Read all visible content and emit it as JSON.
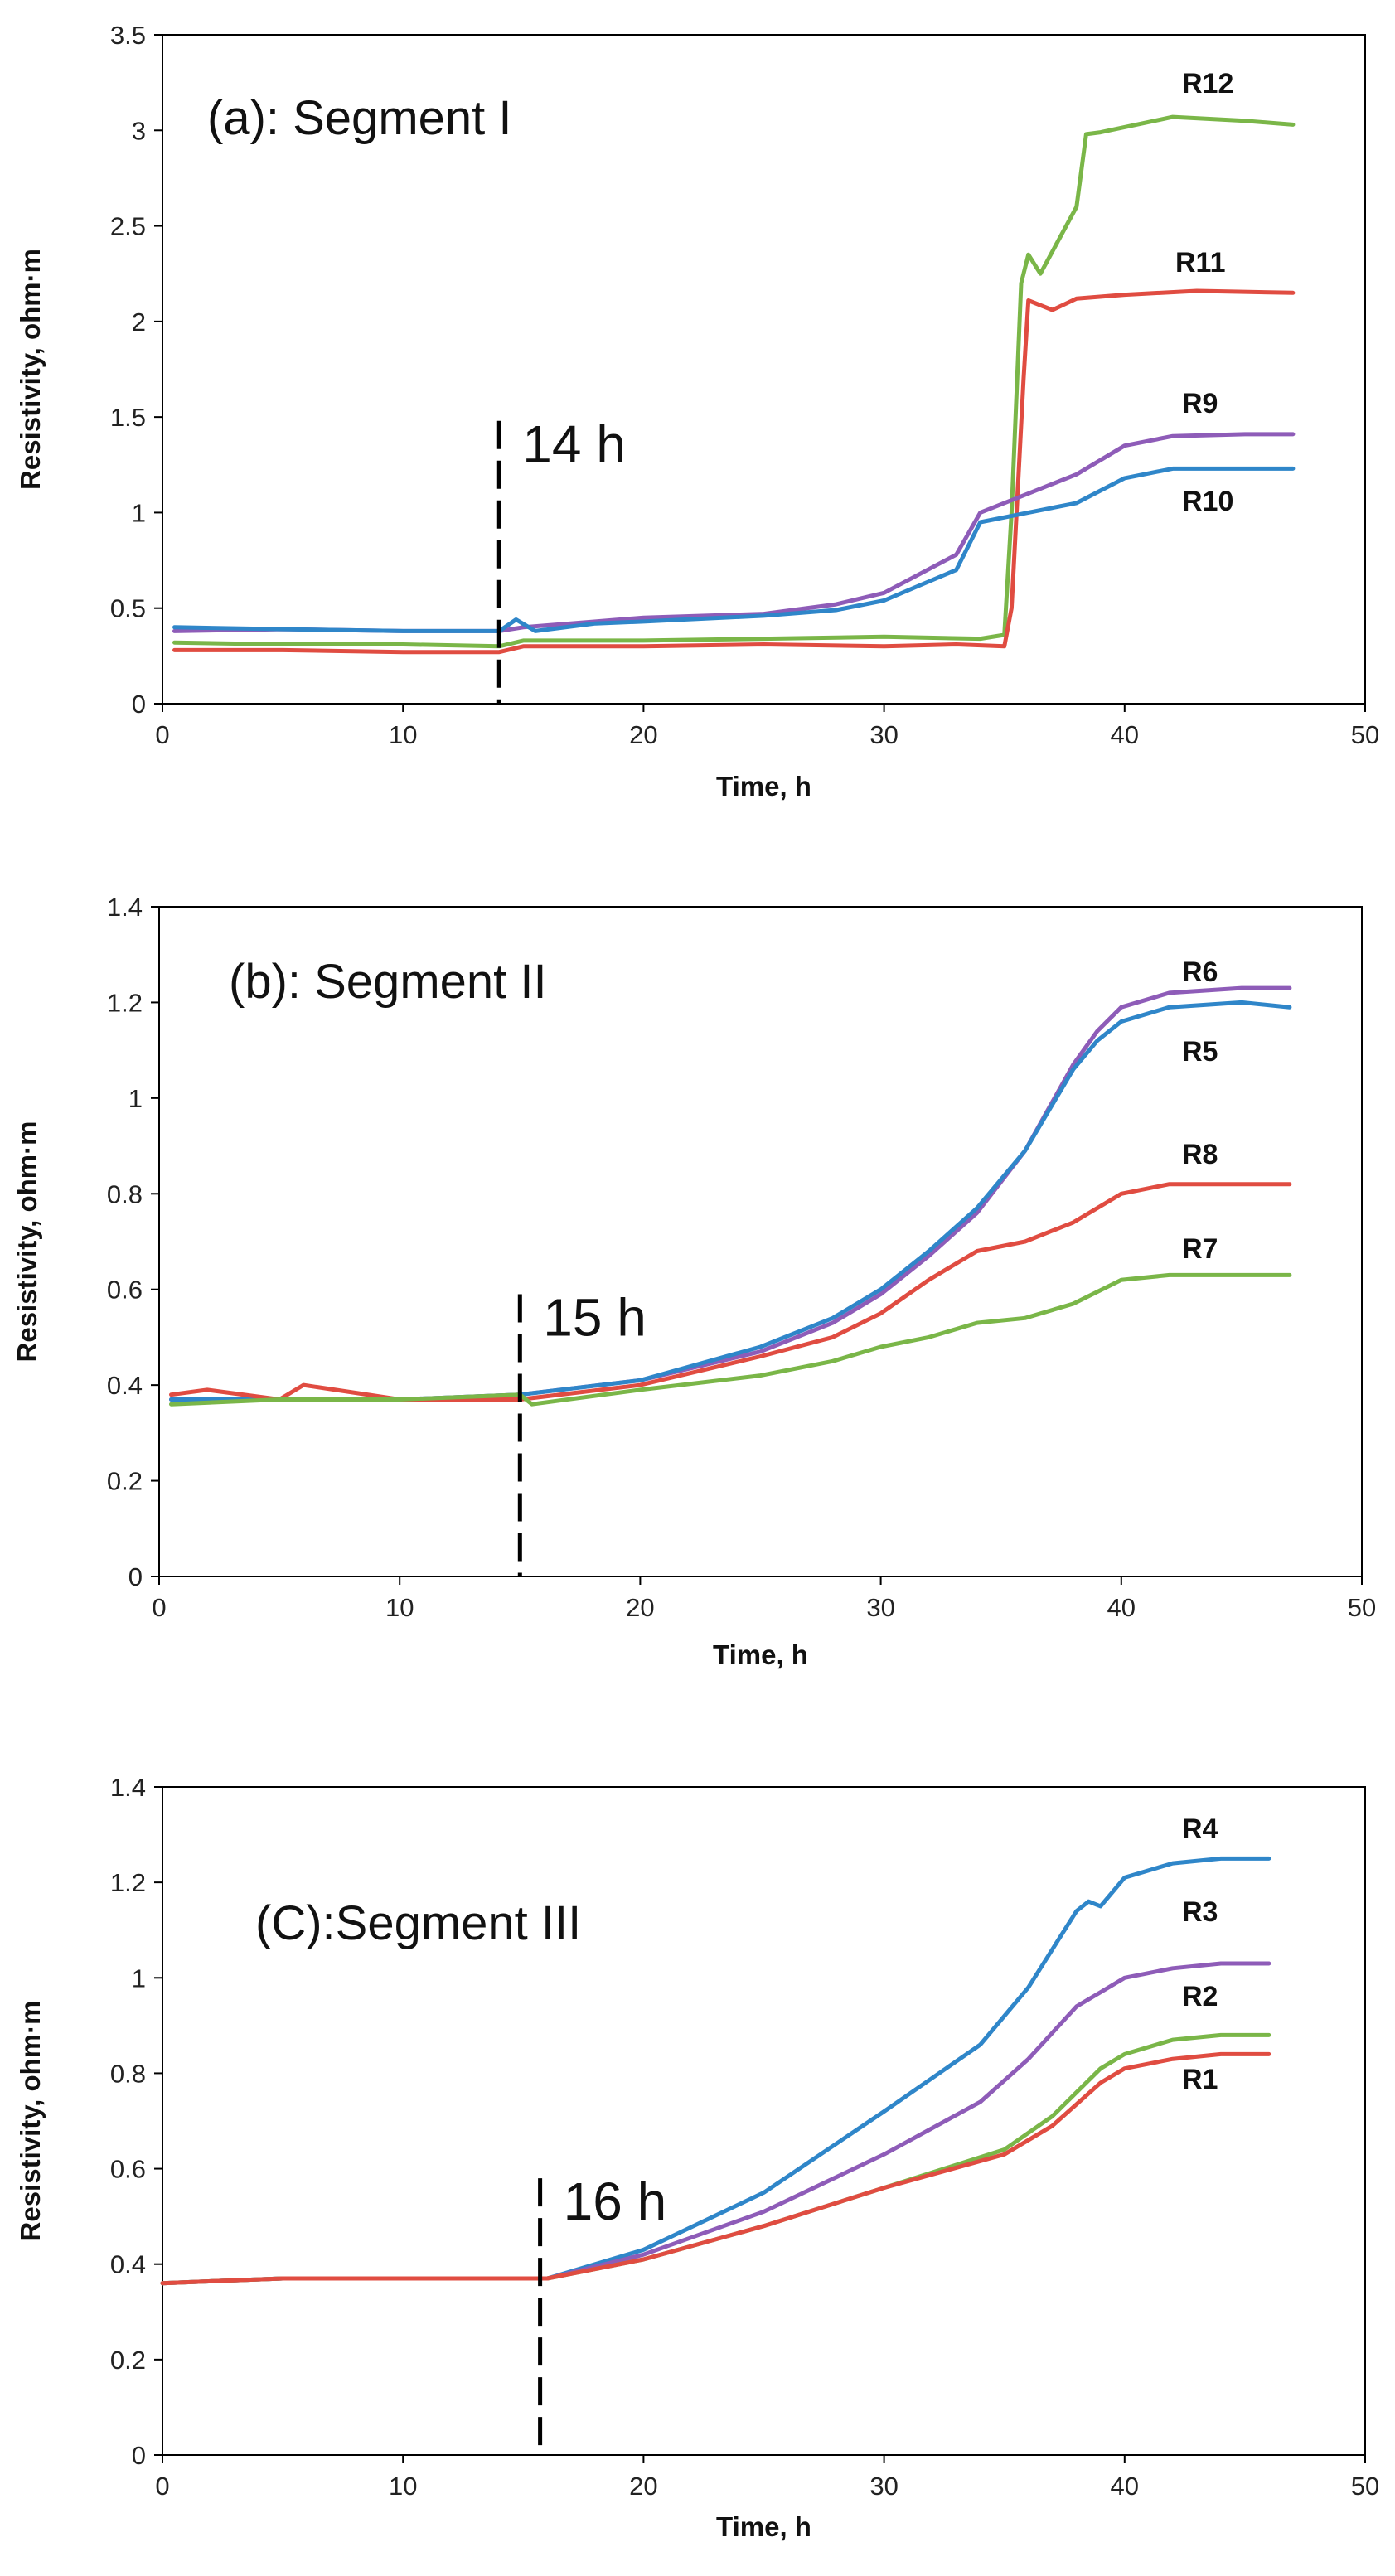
{
  "chart_data": [
    {
      "type": "line",
      "title": "(a): Segment I",
      "xlabel": "Time, h",
      "ylabel": "Resistivity, ohm·m",
      "xlim": [
        0,
        50
      ],
      "ylim": [
        0,
        3.5
      ],
      "xticks": [
        0,
        10,
        20,
        30,
        40,
        50
      ],
      "xtick_labels": [
        "0",
        "10",
        "20",
        "30",
        "40",
        "50"
      ],
      "yticks": [
        0,
        0.5,
        1,
        1.5,
        2,
        2.5,
        3,
        3.5
      ],
      "ytick_labels": [
        "0",
        "0.5",
        "1",
        "1.5",
        "2",
        "2.5",
        "3",
        "3.5"
      ],
      "grid": false,
      "marker": {
        "x": 14,
        "y_top": 1.48,
        "label": "14 h"
      },
      "series": [
        {
          "name": "R12",
          "color": "#7ab648",
          "x": [
            0.5,
            5,
            10,
            14,
            15,
            20,
            25,
            30,
            34,
            35,
            35.3,
            35.7,
            36,
            36.5,
            38,
            38.4,
            39,
            42,
            45,
            47
          ],
          "y": [
            0.32,
            0.31,
            0.31,
            0.3,
            0.33,
            0.33,
            0.34,
            0.35,
            0.34,
            0.36,
            1.0,
            2.2,
            2.35,
            2.25,
            2.6,
            2.98,
            2.99,
            3.07,
            3.05,
            3.03
          ]
        },
        {
          "name": "R11",
          "color": "#e04c41",
          "x": [
            0.5,
            5,
            10,
            14,
            15,
            20,
            25,
            30,
            33,
            35,
            35.3,
            35.8,
            36,
            37,
            38,
            40,
            43,
            47
          ],
          "y": [
            0.28,
            0.28,
            0.27,
            0.27,
            0.3,
            0.3,
            0.31,
            0.3,
            0.31,
            0.3,
            0.5,
            1.7,
            2.11,
            2.06,
            2.12,
            2.14,
            2.16,
            2.15
          ]
        },
        {
          "name": "R9",
          "color": "#8e5cb8",
          "x": [
            0.5,
            5,
            10,
            14,
            15,
            18,
            20,
            25,
            28,
            30,
            33,
            34,
            36,
            38,
            40,
            42,
            45,
            47
          ],
          "y": [
            0.38,
            0.39,
            0.38,
            0.38,
            0.4,
            0.43,
            0.45,
            0.47,
            0.52,
            0.58,
            0.78,
            1.0,
            1.1,
            1.2,
            1.35,
            1.4,
            1.41,
            1.41
          ]
        },
        {
          "name": "R10",
          "color": "#2f86c9",
          "x": [
            0.5,
            5,
            10,
            14,
            14.7,
            15.5,
            18,
            20,
            25,
            28,
            30,
            33,
            34,
            36,
            38,
            40,
            42,
            45,
            47
          ],
          "y": [
            0.4,
            0.39,
            0.38,
            0.38,
            0.44,
            0.38,
            0.42,
            0.43,
            0.46,
            0.49,
            0.54,
            0.7,
            0.95,
            1.0,
            1.05,
            1.18,
            1.23,
            1.23,
            1.23
          ]
        }
      ]
    },
    {
      "type": "line",
      "title": "(b): Segment II",
      "xlabel": "Time, h",
      "ylabel": "Resistivity, ohm·m",
      "xlim": [
        0,
        50
      ],
      "ylim": [
        0,
        1.4
      ],
      "xticks": [
        0,
        10,
        20,
        30,
        40,
        50
      ],
      "xtick_labels": [
        "0",
        "10",
        "20",
        "30",
        "40",
        "50"
      ],
      "yticks": [
        0,
        0.2,
        0.4,
        0.6,
        0.8,
        1,
        1.2,
        1.4
      ],
      "ytick_labels": [
        "0",
        "0.2",
        "0.4",
        "0.6",
        "0.8",
        "1",
        "1.2",
        "1.4"
      ],
      "grid": false,
      "marker": {
        "x": 15,
        "y_top": 0.59,
        "label": "15 h"
      },
      "series": [
        {
          "name": "R6",
          "color": "#8e5cb8",
          "x": [
            0.5,
            5,
            10,
            15,
            20,
            25,
            28,
            30,
            32,
            34,
            36,
            38,
            39,
            40,
            42,
            45,
            47
          ],
          "y": [
            0.37,
            0.37,
            0.37,
            0.38,
            0.41,
            0.47,
            0.53,
            0.59,
            0.67,
            0.76,
            0.89,
            1.07,
            1.14,
            1.19,
            1.22,
            1.23,
            1.23
          ]
        },
        {
          "name": "R5",
          "color": "#2f86c9",
          "x": [
            0.5,
            5,
            10,
            15,
            20,
            25,
            28,
            30,
            32,
            34,
            36,
            38,
            39,
            40,
            42,
            45,
            47
          ],
          "y": [
            0.37,
            0.37,
            0.37,
            0.38,
            0.41,
            0.48,
            0.54,
            0.6,
            0.68,
            0.77,
            0.89,
            1.06,
            1.12,
            1.16,
            1.19,
            1.2,
            1.19
          ]
        },
        {
          "name": "R8",
          "color": "#e04c41",
          "x": [
            0.5,
            2,
            5,
            6,
            10,
            15,
            20,
            25,
            28,
            30,
            32,
            34,
            36,
            38,
            40,
            42,
            45,
            47
          ],
          "y": [
            0.38,
            0.39,
            0.37,
            0.4,
            0.37,
            0.37,
            0.4,
            0.46,
            0.5,
            0.55,
            0.62,
            0.68,
            0.7,
            0.74,
            0.8,
            0.82,
            0.82,
            0.82
          ]
        },
        {
          "name": "R7",
          "color": "#7ab648",
          "x": [
            0.5,
            5,
            10,
            15,
            15.5,
            20,
            25,
            28,
            30,
            32,
            34,
            36,
            38,
            40,
            42,
            45,
            47
          ],
          "y": [
            0.36,
            0.37,
            0.37,
            0.38,
            0.36,
            0.39,
            0.42,
            0.45,
            0.48,
            0.5,
            0.53,
            0.54,
            0.57,
            0.62,
            0.63,
            0.63,
            0.63
          ]
        }
      ]
    },
    {
      "type": "line",
      "title": "(C):Segment III",
      "xlabel": "Time, h",
      "ylabel": "Resistivity, ohm·m",
      "xlim": [
        0,
        50
      ],
      "ylim": [
        0,
        1.4
      ],
      "xticks": [
        0,
        10,
        20,
        30,
        40,
        50
      ],
      "xtick_labels": [
        "0",
        "10",
        "20",
        "30",
        "40",
        "50"
      ],
      "yticks": [
        0,
        0.2,
        0.4,
        0.6,
        0.8,
        1,
        1.2,
        1.4
      ],
      "ytick_labels": [
        "0",
        "0.2",
        "0.4",
        "0.6",
        "0.8",
        "1",
        "1.2",
        "1.4"
      ],
      "grid": false,
      "marker": {
        "x": 15.7,
        "y_top": 0.58,
        "label": "16 h"
      },
      "series": [
        {
          "name": "R4",
          "color": "#2f86c9",
          "x": [
            0,
            5,
            10,
            15,
            16,
            20,
            25,
            30,
            34,
            36,
            38,
            38.5,
            39,
            40,
            42,
            44,
            46
          ],
          "y": [
            0.36,
            0.37,
            0.37,
            0.37,
            0.37,
            0.43,
            0.55,
            0.72,
            0.86,
            0.98,
            1.14,
            1.16,
            1.15,
            1.21,
            1.24,
            1.25,
            1.25
          ]
        },
        {
          "name": "R3",
          "color": "#8e5cb8",
          "x": [
            0,
            5,
            10,
            15,
            16,
            20,
            25,
            30,
            34,
            36,
            38,
            39,
            40,
            42,
            44,
            46
          ],
          "y": [
            0.36,
            0.37,
            0.37,
            0.37,
            0.37,
            0.42,
            0.51,
            0.63,
            0.74,
            0.83,
            0.94,
            0.97,
            1.0,
            1.02,
            1.03,
            1.03
          ]
        },
        {
          "name": "R2",
          "color": "#7ab648",
          "x": [
            0,
            5,
            10,
            15,
            16,
            20,
            25,
            30,
            35,
            37,
            39,
            40,
            42,
            44,
            46
          ],
          "y": [
            0.36,
            0.37,
            0.37,
            0.37,
            0.37,
            0.41,
            0.48,
            0.56,
            0.64,
            0.71,
            0.81,
            0.84,
            0.87,
            0.88,
            0.88
          ]
        },
        {
          "name": "R1",
          "color": "#e04c41",
          "x": [
            0,
            5,
            10,
            15,
            16,
            20,
            25,
            30,
            35,
            37,
            39,
            40,
            42,
            44,
            46
          ],
          "y": [
            0.36,
            0.37,
            0.37,
            0.37,
            0.37,
            0.41,
            0.48,
            0.56,
            0.63,
            0.69,
            0.78,
            0.81,
            0.83,
            0.84,
            0.84
          ]
        }
      ]
    }
  ]
}
